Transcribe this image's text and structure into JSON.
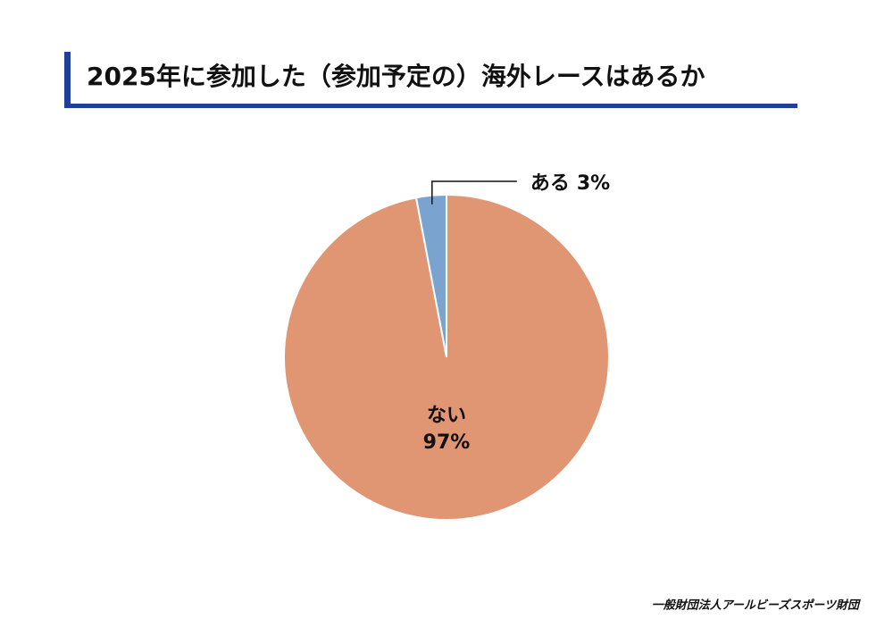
{
  "chart_data": {
    "type": "pie",
    "title": "2025年に参加した（参加予定の）海外レースはあるか",
    "categories": [
      "ある",
      "ない"
    ],
    "values": [
      3,
      97
    ],
    "value_labels": [
      "3%",
      "97%"
    ],
    "colors": [
      "#7ba3cf",
      "#e09573"
    ],
    "source": "一般財団法人アールビーズスポーツ財団"
  }
}
